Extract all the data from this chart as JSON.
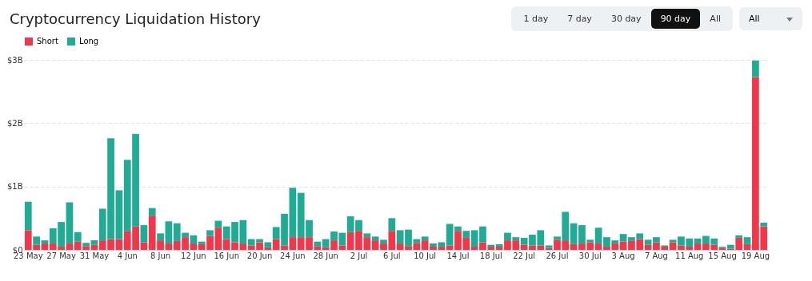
{
  "chart_data": {
    "type": "bar",
    "title": "Cryptocurrency Liquidation History",
    "stacked": true,
    "legend": "top",
    "grid": "y",
    "annotations": [
      "1 day",
      "7 day",
      "30 day",
      "90 day",
      "All",
      "All"
    ],
    "categories": [
      "23 May",
      null,
      null,
      null,
      "27 May",
      null,
      null,
      null,
      "31 May",
      null,
      null,
      null,
      "4 Jun",
      null,
      null,
      null,
      "8 Jun",
      null,
      null,
      null,
      "12 Jun",
      null,
      null,
      null,
      "16 Jun",
      null,
      null,
      null,
      "20 Jun",
      null,
      null,
      null,
      "24 Jun",
      null,
      null,
      null,
      "28 Jun",
      null,
      null,
      null,
      "2 Jul",
      null,
      null,
      null,
      "6 Jul",
      null,
      null,
      null,
      "10 Jul",
      null,
      null,
      null,
      "14 Jul",
      null,
      null,
      null,
      "18 Jul",
      null,
      null,
      null,
      "22 Jul",
      null,
      null,
      null,
      "26 Jul",
      null,
      null,
      null,
      "30 Jul",
      null,
      null,
      null,
      "3 Aug",
      null,
      null,
      null,
      "7 Aug",
      null,
      null,
      null,
      "11 Aug",
      null,
      null,
      null,
      "15 Aug",
      null,
      null,
      null,
      "19 Aug",
      null
    ],
    "ylim": [
      0,
      3
    ],
    "yticks": [
      {
        "value": 0,
        "label": "$0"
      },
      {
        "value": 1,
        "label": "$1B"
      },
      {
        "value": 2,
        "label": "$2B"
      },
      {
        "value": 3,
        "label": "$3B"
      }
    ],
    "series": [
      {
        "name": "Short",
        "color": "#f0384d",
        "values": [
          0.31,
          0.08,
          0.1,
          0.1,
          0.05,
          0.1,
          0.13,
          0.06,
          0.08,
          0.15,
          0.17,
          0.17,
          0.3,
          0.37,
          0.12,
          0.54,
          0.15,
          0.1,
          0.14,
          0.2,
          0.1,
          0.09,
          0.22,
          0.35,
          0.17,
          0.12,
          0.1,
          0.07,
          0.12,
          0.04,
          0.17,
          0.07,
          0.2,
          0.2,
          0.2,
          0.06,
          0.04,
          0.15,
          0.07,
          0.28,
          0.3,
          0.2,
          0.15,
          0.1,
          0.3,
          0.1,
          0.06,
          0.11,
          0.15,
          0.05,
          0.05,
          0.07,
          0.3,
          0.19,
          0.05,
          0.12,
          0.05,
          0.05,
          0.15,
          0.15,
          0.08,
          0.07,
          0.07,
          0.03,
          0.16,
          0.15,
          0.09,
          0.1,
          0.12,
          0.1,
          0.05,
          0.1,
          0.13,
          0.14,
          0.17,
          0.08,
          0.12,
          0.05,
          0.12,
          0.07,
          0.05,
          0.1,
          0.1,
          0.08,
          0.03,
          0.02,
          0.19,
          0.09,
          2.73,
          0.37
        ]
      },
      {
        "name": "Long",
        "color": "#22ab94",
        "values": [
          0.45,
          0.13,
          0.05,
          0.24,
          0.39,
          0.65,
          0.15,
          0.05,
          0.07,
          0.5,
          1.59,
          0.77,
          1.12,
          1.46,
          0.27,
          0.12,
          0.11,
          0.35,
          0.28,
          0.07,
          0.13,
          0.04,
          0.09,
          0.11,
          0.2,
          0.32,
          0.37,
          0.1,
          0.05,
          0.08,
          0.19,
          0.5,
          0.78,
          0.7,
          0.27,
          0.07,
          0.13,
          0.14,
          0.2,
          0.25,
          0.17,
          0.06,
          0.06,
          0.06,
          0.2,
          0.21,
          0.26,
          0.06,
          0.06,
          0.05,
          0.07,
          0.34,
          0.07,
          0.11,
          0.26,
          0.25,
          0.03,
          0.04,
          0.12,
          0.05,
          0.11,
          0.17,
          0.24,
          0.04,
          0.05,
          0.45,
          0.33,
          0.29,
          0.04,
          0.25,
          0.15,
          0.05,
          0.12,
          0.06,
          0.09,
          0.08,
          0.08,
          0.02,
          0.04,
          0.14,
          0.13,
          0.08,
          0.12,
          0.1,
          0.02,
          0.06,
          0.04,
          0.11,
          0.26,
          0.06
        ]
      }
    ]
  }
}
